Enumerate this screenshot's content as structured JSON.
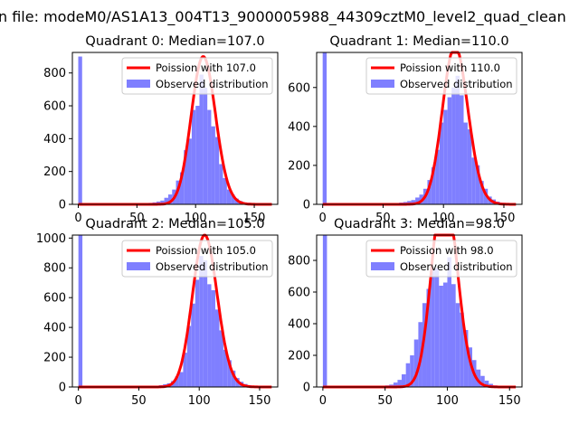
{
  "figure": {
    "suptitle": "n file: modeM0/AS1A13_004T13_9000005988_44309cztM0_level2_quad_clean"
  },
  "colors": {
    "fit_line": "#ff0000",
    "observed_bars": "#7f7fff"
  },
  "chart_data": [
    {
      "type": "bar",
      "title": "Quadrant 0: Median=107.0",
      "series": [
        {
          "name": "Poission with 107.0",
          "kind": "line",
          "mean": 107.0
        },
        {
          "name": "Observed distribution",
          "kind": "histogram",
          "bins": [
            [
              0,
              3.3,
              900
            ],
            [
              3.3,
              50.0,
              0
            ],
            [
              50.0,
              53.3,
              3
            ],
            [
              53.3,
              56.7,
              5
            ],
            [
              56.7,
              60.0,
              6
            ],
            [
              60.0,
              63.3,
              9
            ],
            [
              63.3,
              66.7,
              12
            ],
            [
              66.7,
              70.0,
              17
            ],
            [
              70.0,
              73.3,
              23
            ],
            [
              73.3,
              76.7,
              40
            ],
            [
              76.7,
              80.0,
              60
            ],
            [
              80.0,
              83.3,
              90
            ],
            [
              83.3,
              86.7,
              145
            ],
            [
              86.7,
              90.0,
              195
            ],
            [
              90.0,
              93.3,
              330
            ],
            [
              93.3,
              96.7,
              400
            ],
            [
              96.7,
              100.0,
              575
            ],
            [
              100.0,
              103.3,
              600
            ],
            [
              103.3,
              106.7,
              790
            ],
            [
              106.7,
              110.0,
              710
            ],
            [
              110.0,
              113.3,
              575
            ],
            [
              113.3,
              116.7,
              475
            ],
            [
              116.7,
              120.0,
              410
            ],
            [
              120.0,
              123.3,
              245
            ],
            [
              123.3,
              126.7,
              160
            ],
            [
              126.7,
              130.0,
              90
            ],
            [
              130.0,
              133.3,
              60
            ],
            [
              133.3,
              136.7,
              35
            ],
            [
              136.7,
              140.0,
              20
            ],
            [
              140.0,
              143.3,
              12
            ],
            [
              143.3,
              146.7,
              10
            ],
            [
              146.7,
              150.0,
              8
            ]
          ]
        }
      ],
      "xlim": [
        -5,
        170
      ],
      "ylim": [
        0,
        925
      ],
      "xticks": [
        0,
        50,
        100,
        150
      ],
      "yticks": [
        0,
        200,
        400,
        600,
        800
      ],
      "legend": "upper right"
    },
    {
      "type": "bar",
      "title": "Quadrant 1: Median=110.0",
      "series": [
        {
          "name": "Poission with 110.0",
          "kind": "line",
          "mean": 110.0
        },
        {
          "name": "Observed distribution",
          "kind": "histogram",
          "bins": [
            [
              0,
              3.3,
              780
            ],
            [
              3.3,
              53.3,
              0
            ],
            [
              53.3,
              56.7,
              3
            ],
            [
              56.7,
              60.0,
              4
            ],
            [
              60.0,
              63.3,
              6
            ],
            [
              63.3,
              66.7,
              9
            ],
            [
              66.7,
              70.0,
              12
            ],
            [
              70.0,
              73.3,
              17
            ],
            [
              73.3,
              76.7,
              22
            ],
            [
              76.7,
              80.0,
              35
            ],
            [
              80.0,
              83.3,
              50
            ],
            [
              83.3,
              86.7,
              80
            ],
            [
              86.7,
              90.0,
              125
            ],
            [
              90.0,
              93.3,
              190
            ],
            [
              93.3,
              96.7,
              280
            ],
            [
              96.7,
              100.0,
              420
            ],
            [
              100.0,
              103.3,
              485
            ],
            [
              103.3,
              106.7,
              550
            ],
            [
              106.7,
              110.0,
              600
            ],
            [
              110.0,
              113.3,
              660
            ],
            [
              113.3,
              116.7,
              560
            ],
            [
              116.7,
              120.0,
              420
            ],
            [
              120.0,
              123.3,
              385
            ],
            [
              123.3,
              126.7,
              240
            ],
            [
              126.7,
              130.0,
              200
            ],
            [
              130.0,
              133.3,
              120
            ],
            [
              133.3,
              136.7,
              80
            ],
            [
              136.7,
              140.0,
              40
            ],
            [
              140.0,
              143.3,
              25
            ],
            [
              143.3,
              146.7,
              14
            ],
            [
              146.7,
              150.0,
              8
            ]
          ]
        }
      ],
      "xlim": [
        -5,
        165
      ],
      "ylim": [
        0,
        780
      ],
      "xticks": [
        0,
        50,
        100,
        150
      ],
      "yticks": [
        0,
        200,
        400,
        600
      ],
      "legend": "upper right"
    },
    {
      "type": "bar",
      "title": "Quadrant 2: Median=105.0",
      "series": [
        {
          "name": "Poission with 105.0",
          "kind": "line",
          "mean": 105.0
        },
        {
          "name": "Observed distribution",
          "kind": "histogram",
          "bins": [
            [
              0,
              3.3,
              1020
            ],
            [
              3.3,
              53.3,
              0
            ],
            [
              53.3,
              56.7,
              3
            ],
            [
              56.7,
              60.0,
              4
            ],
            [
              60.0,
              63.3,
              6
            ],
            [
              63.3,
              66.7,
              8
            ],
            [
              66.7,
              70.0,
              12
            ],
            [
              70.0,
              73.3,
              18
            ],
            [
              73.3,
              76.7,
              25
            ],
            [
              76.7,
              80.0,
              40
            ],
            [
              80.0,
              83.3,
              70
            ],
            [
              83.3,
              86.7,
              100
            ],
            [
              86.7,
              90.0,
              230
            ],
            [
              90.0,
              93.3,
              410
            ],
            [
              93.3,
              96.7,
              560
            ],
            [
              96.7,
              100.0,
              720
            ],
            [
              100.0,
              103.3,
              880
            ],
            [
              103.3,
              106.7,
              850
            ],
            [
              106.7,
              110.0,
              690
            ],
            [
              110.0,
              113.3,
              650
            ],
            [
              113.3,
              116.7,
              520
            ],
            [
              116.7,
              120.0,
              380
            ],
            [
              120.0,
              123.3,
              250
            ],
            [
              123.3,
              126.7,
              180
            ],
            [
              126.7,
              130.0,
              110
            ],
            [
              130.0,
              133.3,
              60
            ],
            [
              133.3,
              136.7,
              35
            ],
            [
              136.7,
              140.0,
              20
            ],
            [
              140.0,
              143.3,
              12
            ],
            [
              143.3,
              146.7,
              8
            ]
          ]
        }
      ],
      "xlim": [
        -5,
        165
      ],
      "ylim": [
        0,
        1020
      ],
      "xticks": [
        0,
        50,
        100,
        150
      ],
      "yticks": [
        0,
        200,
        400,
        600,
        800,
        1000
      ],
      "legend": "upper right"
    },
    {
      "type": "bar",
      "title": "Quadrant 3: Median=98.0",
      "series": [
        {
          "name": "Poission with 98.0",
          "kind": "line",
          "mean": 98.0
        },
        {
          "name": "Observed distribution",
          "kind": "histogram",
          "bins": [
            [
              0,
              3.3,
              960
            ],
            [
              3.3,
              40.0,
              0
            ],
            [
              40.0,
              43.3,
              3
            ],
            [
              43.3,
              46.7,
              5
            ],
            [
              46.7,
              50.0,
              7
            ],
            [
              50.0,
              53.3,
              10
            ],
            [
              53.3,
              56.7,
              15
            ],
            [
              56.7,
              60.0,
              28
            ],
            [
              60.0,
              63.3,
              45
            ],
            [
              63.3,
              66.7,
              80
            ],
            [
              66.7,
              70.0,
              150
            ],
            [
              70.0,
              73.3,
              200
            ],
            [
              73.3,
              76.7,
              300
            ],
            [
              76.7,
              80.0,
              410
            ],
            [
              80.0,
              83.3,
              530
            ],
            [
              83.3,
              86.7,
              620
            ],
            [
              86.7,
              90.0,
              740
            ],
            [
              90.0,
              93.3,
              750
            ],
            [
              93.3,
              96.7,
              640
            ],
            [
              96.7,
              100.0,
              660
            ],
            [
              100.0,
              103.3,
              820
            ],
            [
              103.3,
              106.7,
              650
            ],
            [
              106.7,
              110.0,
              530
            ],
            [
              110.0,
              113.3,
              470
            ],
            [
              113.3,
              116.7,
              360
            ],
            [
              116.7,
              120.0,
              250
            ],
            [
              120.0,
              123.3,
              170
            ],
            [
              123.3,
              126.7,
              110
            ],
            [
              126.7,
              130.0,
              70
            ],
            [
              130.0,
              133.3,
              40
            ],
            [
              133.3,
              136.7,
              20
            ],
            [
              136.7,
              140.0,
              10
            ]
          ]
        }
      ],
      "xlim": [
        -5,
        160
      ],
      "ylim": [
        0,
        960
      ],
      "xticks": [
        0,
        50,
        100,
        150
      ],
      "yticks": [
        0,
        200,
        400,
        600,
        800
      ],
      "legend": "upper right"
    }
  ]
}
